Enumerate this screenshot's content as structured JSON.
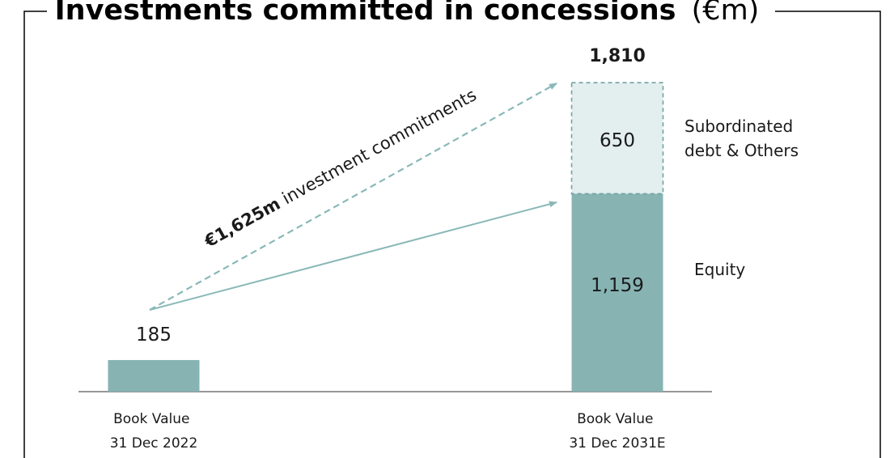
{
  "title": {
    "main": "Investments committed in concessions",
    "unit": "(€m)"
  },
  "colors": {
    "equity": "#87b3b3",
    "subordinated_fill": "#e3eeee",
    "subordinated_border": "#6fa2a2",
    "arrow": "#8ab8b8",
    "frame": "#000000",
    "axis": "#595959"
  },
  "chart_data": {
    "type": "bar",
    "categories": [
      "Book Value\n31 Dec 2022",
      "Book Value\n31 Dec 2031E"
    ],
    "category_lines": [
      [
        "Book Value",
        "31 Dec 2022"
      ],
      [
        "Book Value",
        "31 Dec 2031E"
      ]
    ],
    "series": [
      {
        "name": "Equity",
        "values": [
          185,
          1159
        ]
      },
      {
        "name": "Subordinated debt & Others",
        "values": [
          0,
          650
        ]
      }
    ],
    "value_labels": [
      "185",
      "1,159",
      "650"
    ],
    "total_label": "1,810",
    "series_labels": {
      "subordinated_lines": [
        "Subordinated",
        "debt & Others"
      ],
      "equity": "Equity"
    },
    "annotation": {
      "bold": "€1,625m",
      "rest": " investment commitments"
    },
    "stacked": true,
    "grid": false
  }
}
